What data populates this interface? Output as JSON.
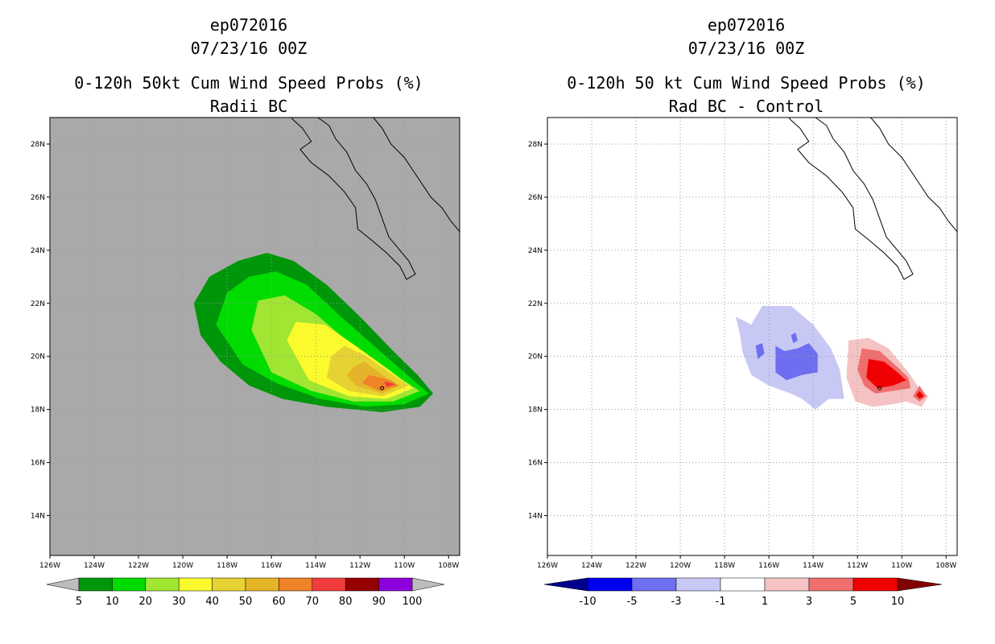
{
  "chart_data": [
    {
      "type": "heatmap",
      "line1": "ep072016",
      "line2": "07/23/16 00Z",
      "title": "0-120h 50kt Cum Wind Speed Probs (%)",
      "subtitle": "Radii BC",
      "lon_range": [
        -126,
        -107.5
      ],
      "lat_range": [
        12.5,
        29
      ],
      "x_ticks": [
        "126W",
        "124W",
        "122W",
        "120W",
        "118W",
        "116W",
        "114W",
        "112W",
        "110W",
        "108W"
      ],
      "y_ticks": [
        "14N",
        "16N",
        "18N",
        "20N",
        "22N",
        "24N",
        "26N",
        "28N"
      ],
      "grid": true,
      "background": "#a9a9a9",
      "storm_position": [
        -111,
        18.8
      ],
      "levels": [
        5,
        10,
        20,
        30,
        40,
        50,
        60,
        70,
        80,
        90,
        100
      ],
      "colors": [
        "#00960a",
        "#00dc00",
        "#a0e632",
        "#fafa2d",
        "#e6d232",
        "#e6b428",
        "#f08228",
        "#f03c3c",
        "#960000",
        "#8c00dc"
      ],
      "colorbar_labels": [
        "5",
        "10",
        "20",
        "30",
        "40",
        "50",
        "60",
        "70",
        "80",
        "90",
        "100"
      ],
      "contours": [
        {
          "level": 5,
          "ring": [
            [
              -119.5,
              22
            ],
            [
              -118.8,
              23
            ],
            [
              -117.5,
              23.6
            ],
            [
              -116.2,
              23.9
            ],
            [
              -115,
              23.6
            ],
            [
              -113.5,
              22.7
            ],
            [
              -112,
              21.5
            ],
            [
              -110.5,
              20.2
            ],
            [
              -109.4,
              19.3
            ],
            [
              -108.7,
              18.6
            ],
            [
              -109.3,
              18.1
            ],
            [
              -111,
              17.9
            ],
            [
              -113.5,
              18.1
            ],
            [
              -115.5,
              18.4
            ],
            [
              -117,
              18.9
            ],
            [
              -118.3,
              19.8
            ],
            [
              -119.2,
              20.8
            ]
          ]
        },
        {
          "level": 10,
          "ring": [
            [
              -118.5,
              21.2
            ],
            [
              -118,
              22.4
            ],
            [
              -117,
              23
            ],
            [
              -115.8,
              23.2
            ],
            [
              -114.4,
              22.7
            ],
            [
              -113,
              21.6
            ],
            [
              -111.5,
              20.5
            ],
            [
              -110,
              19.4
            ],
            [
              -108.9,
              18.6
            ],
            [
              -110,
              18.2
            ],
            [
              -111.8,
              18.1
            ],
            [
              -113.8,
              18.4
            ],
            [
              -115.8,
              19
            ],
            [
              -117.3,
              19.7
            ]
          ]
        },
        {
          "level": 20,
          "ring": [
            [
              -116.9,
              21
            ],
            [
              -116.6,
              22.1
            ],
            [
              -115.4,
              22.3
            ],
            [
              -114,
              21.6
            ],
            [
              -112.6,
              20.6
            ],
            [
              -111,
              19.6
            ],
            [
              -109.3,
              18.7
            ],
            [
              -110.5,
              18.3
            ],
            [
              -112.3,
              18.3
            ],
            [
              -114.2,
              18.7
            ],
            [
              -116,
              19.4
            ]
          ]
        },
        {
          "level": 30,
          "ring": [
            [
              -115.3,
              20.6
            ],
            [
              -114.9,
              21.3
            ],
            [
              -113.6,
              21.2
            ],
            [
              -112.2,
              20.4
            ],
            [
              -110.7,
              19.5
            ],
            [
              -109.6,
              18.8
            ],
            [
              -110.8,
              18.4
            ],
            [
              -112.5,
              18.5
            ],
            [
              -114.3,
              19.1
            ]
          ]
        },
        {
          "level": 40,
          "ring": [
            [
              -113.3,
              20
            ],
            [
              -112.7,
              20.4
            ],
            [
              -111.7,
              20
            ],
            [
              -110.5,
              19.3
            ],
            [
              -109.8,
              18.9
            ],
            [
              -111,
              18.5
            ],
            [
              -112.5,
              18.7
            ],
            [
              -113.5,
              19.2
            ]
          ]
        },
        {
          "level": 50,
          "ring": [
            [
              -112.3,
              19.6
            ],
            [
              -111.8,
              19.8
            ],
            [
              -110.8,
              19.2
            ],
            [
              -110.2,
              18.9
            ],
            [
              -111,
              18.6
            ],
            [
              -112.2,
              18.9
            ],
            [
              -112.6,
              19.3
            ]
          ]
        },
        {
          "level": 60,
          "ring": [
            [
              -111.6,
              19.3
            ],
            [
              -110.6,
              19.1
            ],
            [
              -110.3,
              18.9
            ],
            [
              -111.1,
              18.7
            ],
            [
              -111.9,
              19
            ]
          ]
        },
        {
          "level": 70,
          "ring": [
            [
              -110.9,
              19.05
            ],
            [
              -110.4,
              18.95
            ],
            [
              -110.8,
              18.85
            ]
          ]
        }
      ]
    },
    {
      "type": "heatmap",
      "line1": "ep072016",
      "line2": "07/23/16 00Z",
      "title": "0-120h 50 kt Cum Wind Speed Probs (%)",
      "subtitle": "Rad BC - Control",
      "lon_range": [
        -126,
        -107.5
      ],
      "lat_range": [
        12.5,
        29
      ],
      "x_ticks": [
        "126W",
        "124W",
        "122W",
        "120W",
        "118W",
        "116W",
        "114W",
        "112W",
        "110W",
        "108W"
      ],
      "y_ticks": [
        "14N",
        "16N",
        "18N",
        "20N",
        "22N",
        "24N",
        "26N",
        "28N"
      ],
      "grid": true,
      "background": "#ffffff",
      "storm_position": [
        -111,
        18.8
      ],
      "levels": [
        -10,
        -5,
        -3,
        -1,
        1,
        3,
        5,
        10
      ],
      "colors": [
        "#00008c",
        "#0000f0",
        "#6e6ef0",
        "#c8c8f5",
        "#ffffff",
        "#f5c3c3",
        "#f06e6e",
        "#f00000",
        "#820000"
      ],
      "colorbar_labels": [
        "-10",
        "-5",
        "-3",
        "-1",
        "1",
        "3",
        "5",
        "10"
      ],
      "contours": [
        {
          "level": -1,
          "ring": [
            [
              -117.5,
              21.5
            ],
            [
              -116.8,
              21.2
            ],
            [
              -116.3,
              21.9
            ],
            [
              -115,
              21.9
            ],
            [
              -114,
              21.2
            ],
            [
              -113.2,
              20.3
            ],
            [
              -112.8,
              19.5
            ],
            [
              -112.6,
              18.4
            ],
            [
              -113.3,
              18.4
            ],
            [
              -113.9,
              18
            ],
            [
              -114.5,
              18.4
            ],
            [
              -115,
              18.6
            ],
            [
              -116,
              18.9
            ],
            [
              -116.8,
              19.3
            ],
            [
              -117.2,
              20.2
            ],
            [
              -117.3,
              20.8
            ]
          ]
        },
        {
          "level": 1,
          "ring": [
            [
              -112.4,
              20.6
            ],
            [
              -111.5,
              20.7
            ],
            [
              -110.6,
              20.3
            ],
            [
              -109.7,
              19.4
            ],
            [
              -109.3,
              18.9
            ],
            [
              -108.8,
              18.5
            ],
            [
              -109.1,
              18.1
            ],
            [
              -109.8,
              18.3
            ],
            [
              -110.4,
              18.2
            ],
            [
              -111.3,
              18.1
            ],
            [
              -112.1,
              18.3
            ],
            [
              -112.5,
              19.2
            ]
          ]
        },
        {
          "level": -3,
          "ring": [
            [
              -115.7,
              20.4
            ],
            [
              -115.3,
              20.2
            ],
            [
              -114.7,
              20.3
            ],
            [
              -114.2,
              20.5
            ],
            [
              -113.8,
              20.1
            ],
            [
              -113.8,
              19.4
            ],
            [
              -114.5,
              19.3
            ],
            [
              -115.2,
              19.1
            ],
            [
              -115.7,
              19.4
            ]
          ]
        },
        {
          "level": -3,
          "ring": [
            [
              -116.6,
              20.4
            ],
            [
              -116.3,
              20.5
            ],
            [
              -116.2,
              20.1
            ],
            [
              -116.5,
              19.9
            ]
          ]
        },
        {
          "level": -3,
          "ring": [
            [
              -115,
              20.8
            ],
            [
              -114.8,
              20.9
            ],
            [
              -114.7,
              20.6
            ],
            [
              -114.9,
              20.5
            ]
          ]
        },
        {
          "level": 3,
          "ring": [
            [
              -111.8,
              20.3
            ],
            [
              -111,
              20.2
            ],
            [
              -110.2,
              19.6
            ],
            [
              -109.7,
              19.2
            ],
            [
              -109.6,
              18.8
            ],
            [
              -110.4,
              18.7
            ],
            [
              -111.2,
              18.6
            ],
            [
              -111.7,
              18.9
            ],
            [
              -112,
              19.5
            ]
          ]
        },
        {
          "level": 3,
          "ring": [
            [
              -109.2,
              18.9
            ],
            [
              -108.9,
              18.5
            ],
            [
              -109.2,
              18.3
            ],
            [
              -109.5,
              18.5
            ]
          ]
        },
        {
          "level": 5,
          "ring": [
            [
              -111.5,
              19.9
            ],
            [
              -110.8,
              19.8
            ],
            [
              -110.2,
              19.4
            ],
            [
              -109.8,
              19.1
            ],
            [
              -110.4,
              18.9
            ],
            [
              -111.1,
              18.8
            ],
            [
              -111.6,
              19.2
            ]
          ]
        },
        {
          "level": 5,
          "ring": [
            [
              -109.2,
              18.7
            ],
            [
              -109,
              18.5
            ],
            [
              -109.2,
              18.4
            ],
            [
              -109.35,
              18.55
            ]
          ]
        }
      ]
    }
  ]
}
